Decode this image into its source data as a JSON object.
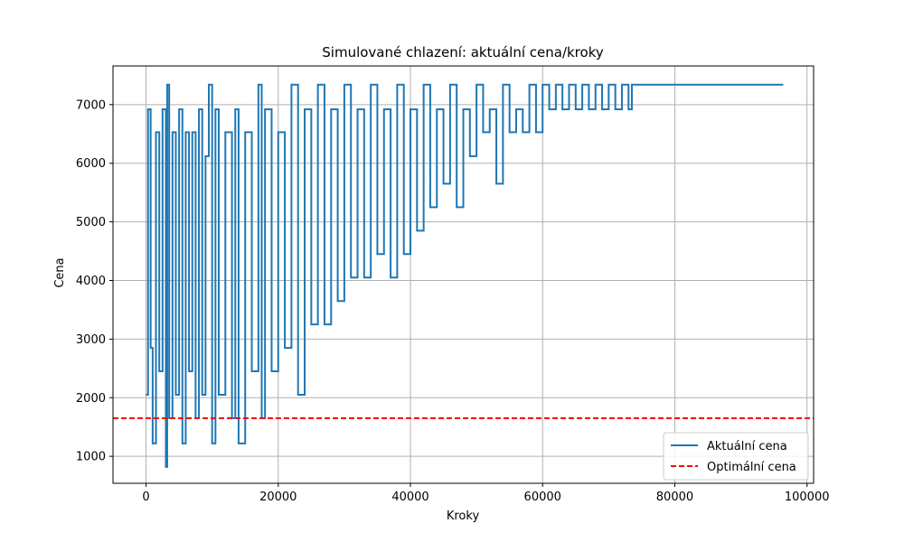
{
  "chart_data": {
    "type": "line",
    "title": "Simulované chlazení: aktuální cena/kroky",
    "xlabel": "Kroky",
    "ylabel": "Cena",
    "xlim": [
      -5000,
      101000
    ],
    "ylim": [
      540,
      7660
    ],
    "xticks": [
      0,
      20000,
      40000,
      60000,
      80000,
      100000
    ],
    "yticks": [
      1000,
      2000,
      3000,
      4000,
      5000,
      6000,
      7000
    ],
    "grid": true,
    "legend_position": "lower-right",
    "series": [
      {
        "name": "Aktuální cena",
        "color": "#1f77b4",
        "style": "solid",
        "points": [
          [
            0,
            2050
          ],
          [
            300,
            6920
          ],
          [
            700,
            2850
          ],
          [
            1000,
            1220
          ],
          [
            1500,
            6530
          ],
          [
            2000,
            2450
          ],
          [
            2500,
            6920
          ],
          [
            3000,
            820
          ],
          [
            3200,
            7340
          ],
          [
            3500,
            1650
          ],
          [
            4000,
            6530
          ],
          [
            4500,
            2050
          ],
          [
            5000,
            6920
          ],
          [
            5500,
            1220
          ],
          [
            6000,
            6530
          ],
          [
            6500,
            2450
          ],
          [
            7000,
            6530
          ],
          [
            7500,
            1650
          ],
          [
            8000,
            6920
          ],
          [
            8500,
            2050
          ],
          [
            9000,
            6120
          ],
          [
            9500,
            7340
          ],
          [
            10000,
            1220
          ],
          [
            10500,
            6920
          ],
          [
            11000,
            2050
          ],
          [
            12000,
            6530
          ],
          [
            13000,
            1650
          ],
          [
            13500,
            6920
          ],
          [
            14000,
            1220
          ],
          [
            15000,
            6530
          ],
          [
            16000,
            2450
          ],
          [
            17000,
            7340
          ],
          [
            17500,
            1650
          ],
          [
            18000,
            6920
          ],
          [
            19000,
            2450
          ],
          [
            20000,
            6530
          ],
          [
            21000,
            2850
          ],
          [
            22000,
            7340
          ],
          [
            23000,
            2050
          ],
          [
            24000,
            6920
          ],
          [
            25000,
            3250
          ],
          [
            26000,
            7340
          ],
          [
            27000,
            3250
          ],
          [
            28000,
            6920
          ],
          [
            29000,
            3650
          ],
          [
            30000,
            7340
          ],
          [
            31000,
            4050
          ],
          [
            32000,
            6920
          ],
          [
            33000,
            4050
          ],
          [
            34000,
            7340
          ],
          [
            35000,
            4450
          ],
          [
            36000,
            6920
          ],
          [
            37000,
            4050
          ],
          [
            38000,
            7340
          ],
          [
            39000,
            4450
          ],
          [
            40000,
            6920
          ],
          [
            41000,
            4850
          ],
          [
            42000,
            7340
          ],
          [
            43000,
            5250
          ],
          [
            44000,
            6920
          ],
          [
            45000,
            5650
          ],
          [
            46000,
            7340
          ],
          [
            47000,
            5250
          ],
          [
            48000,
            6920
          ],
          [
            49000,
            6120
          ],
          [
            50000,
            7340
          ],
          [
            51000,
            6530
          ],
          [
            52000,
            6920
          ],
          [
            53000,
            5650
          ],
          [
            54000,
            7340
          ],
          [
            55000,
            6530
          ],
          [
            56000,
            6920
          ],
          [
            57000,
            6530
          ],
          [
            58000,
            7340
          ],
          [
            59000,
            6530
          ],
          [
            60000,
            7340
          ],
          [
            61000,
            6920
          ],
          [
            62000,
            7340
          ],
          [
            63000,
            6920
          ],
          [
            64000,
            7340
          ],
          [
            65000,
            6920
          ],
          [
            66000,
            7340
          ],
          [
            67000,
            6920
          ],
          [
            68000,
            7340
          ],
          [
            69000,
            6920
          ],
          [
            70000,
            7340
          ],
          [
            71000,
            6920
          ],
          [
            72000,
            7340
          ],
          [
            73000,
            6920
          ],
          [
            73500,
            7340
          ],
          [
            96400,
            7340
          ]
        ]
      },
      {
        "name": "Optimální cena",
        "color": "#ff0000",
        "style": "dashed",
        "value": 1650
      }
    ]
  }
}
